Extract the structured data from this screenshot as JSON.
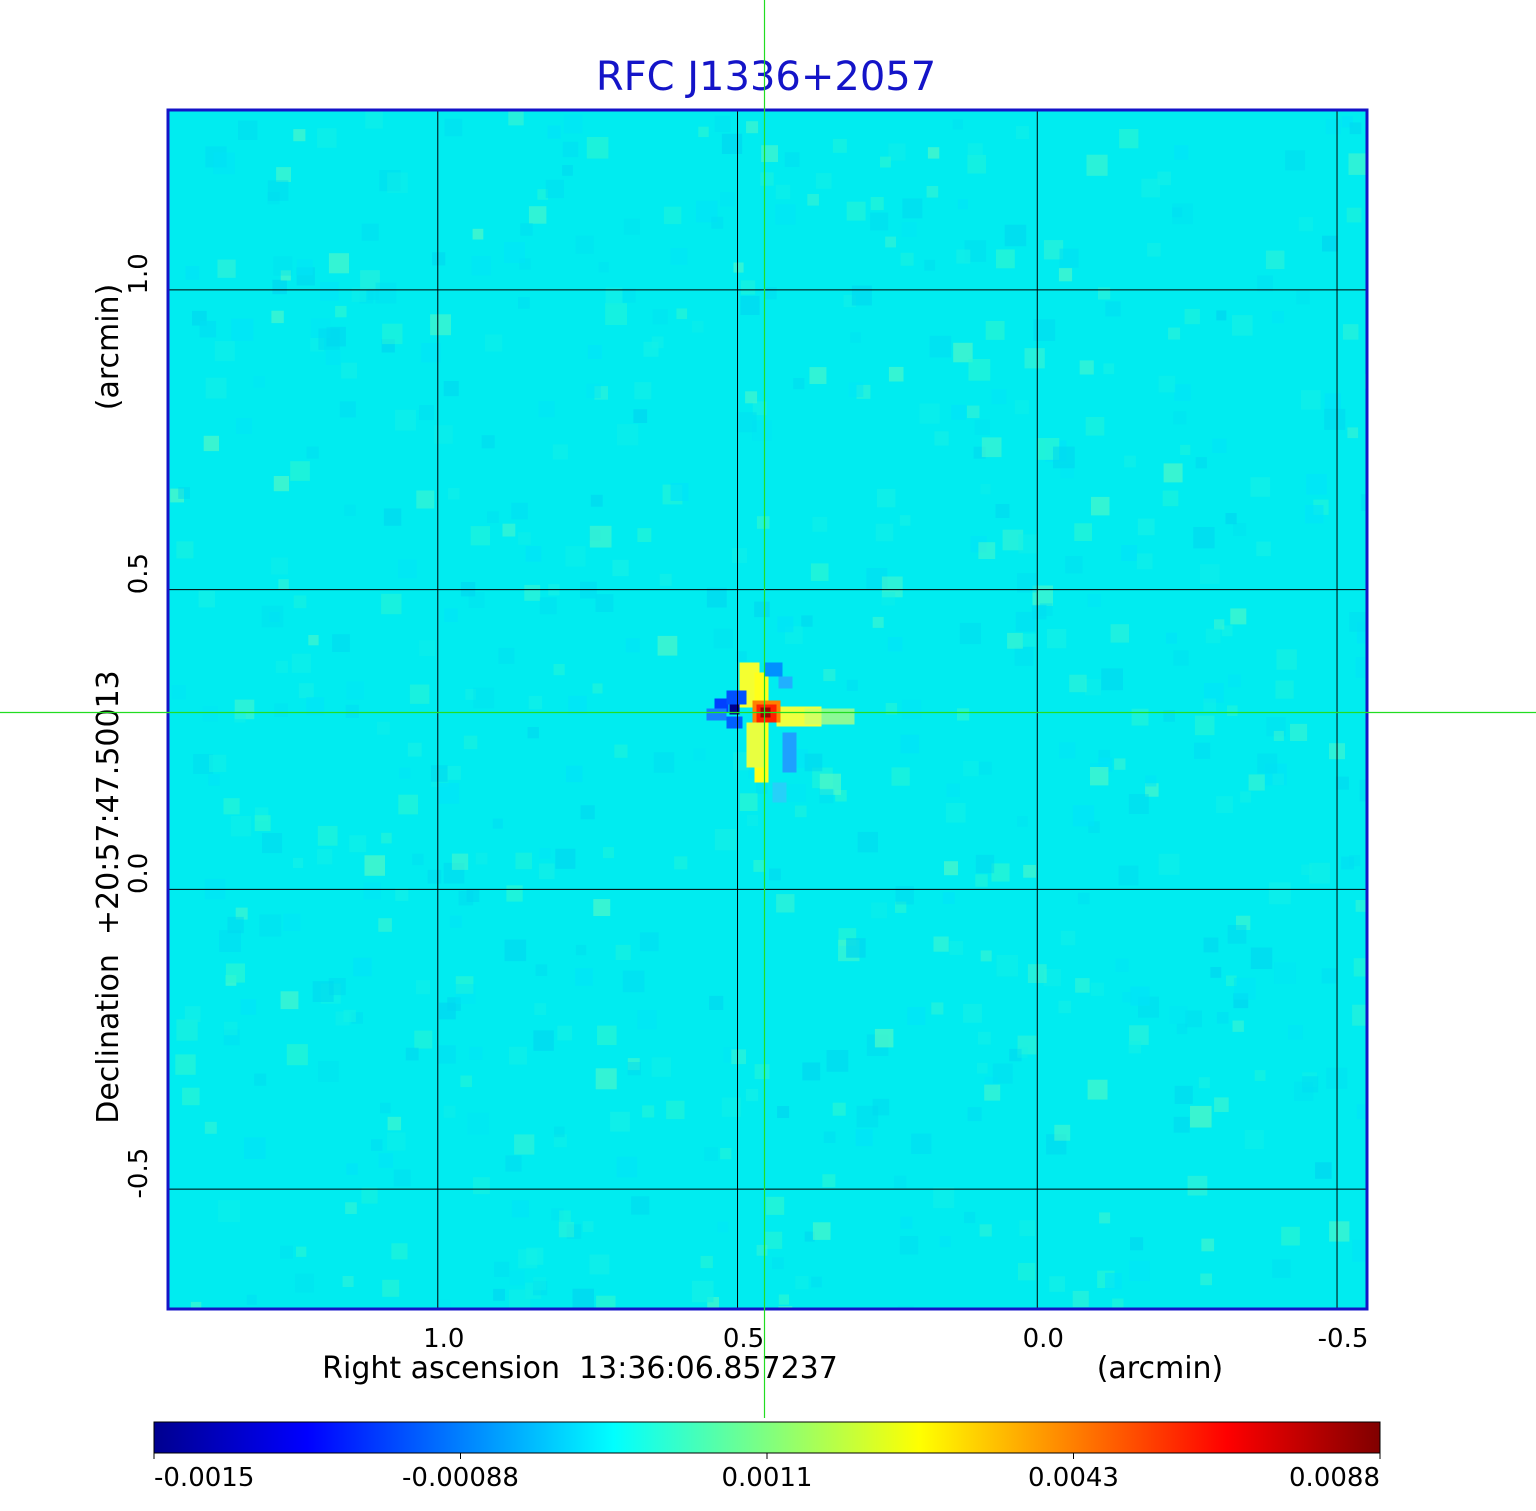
{
  "chart_data": {
    "type": "heatmap",
    "title": "RFC J1336+2057",
    "xlabel": "Right ascension  13:36:06.857237",
    "xunit": "(arcmin)",
    "ylabel": "Declination  +20:57:47.50013",
    "yunit": "(arcmin)",
    "xlim": [
      1.45,
      -0.55
    ],
    "ylim": [
      -0.7,
      1.3
    ],
    "x_ticks": [
      {
        "value": 1.0,
        "label": "1.0"
      },
      {
        "value": 0.5,
        "label": "0.5"
      },
      {
        "value": 0.0,
        "label": "0.0"
      },
      {
        "value": -0.5,
        "label": "-0.5"
      }
    ],
    "y_ticks": [
      {
        "value": 1.0,
        "label": "1.0"
      },
      {
        "value": 0.5,
        "label": "0.5"
      },
      {
        "value": 0.0,
        "label": "0.0"
      },
      {
        "value": -0.5,
        "label": "-0.5"
      }
    ],
    "grid": true,
    "crosshair": {
      "x": 0.455,
      "y": 0.295
    },
    "colorbar": {
      "placement": "bottom",
      "ticks": [
        {
          "value": -0.0015,
          "label": "-0.0015"
        },
        {
          "value": -0.00088,
          "label": "-0.00088"
        },
        {
          "value": 0.0011,
          "label": "0.0011"
        },
        {
          "value": 0.0043,
          "label": "0.0043"
        },
        {
          "value": 0.0088,
          "label": "0.0088"
        }
      ]
    },
    "source": {
      "x": 0.455,
      "y": 0.295,
      "peak": 0.0088
    },
    "colors": {
      "title": "#1414c8",
      "frame": "#1414c8",
      "crosshair": "#22dd22",
      "grid": "#000000",
      "background_field": "#00ecf0"
    }
  }
}
